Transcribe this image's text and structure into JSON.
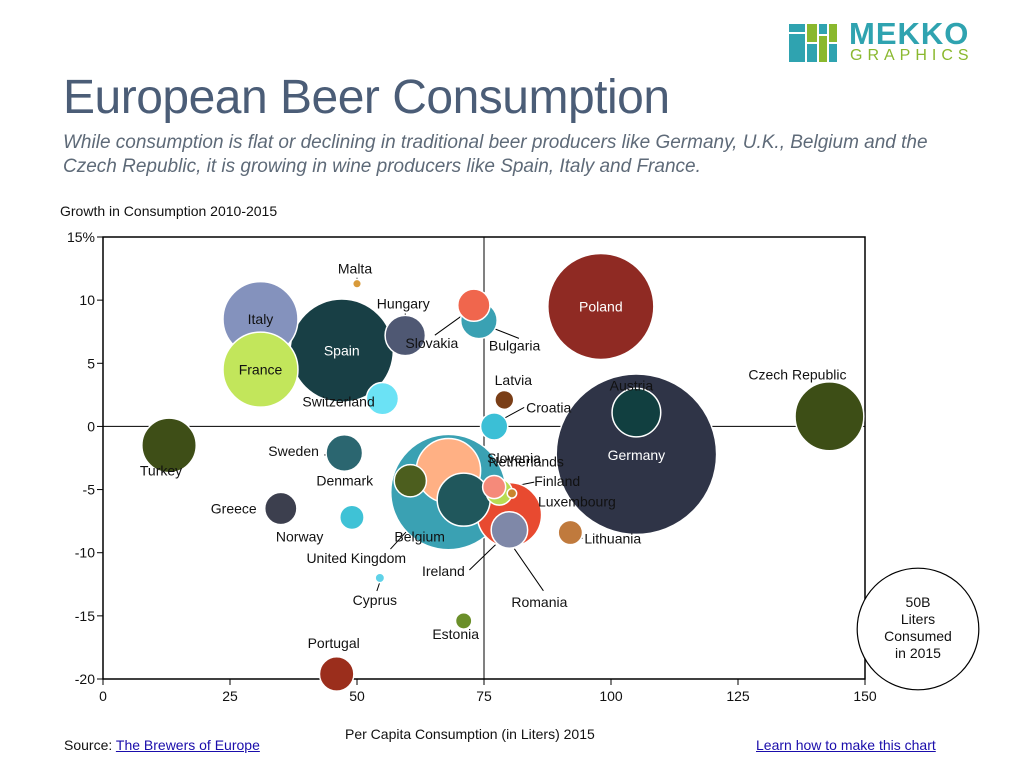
{
  "brand": {
    "name": "MEKKO",
    "sub": "GRAPHICS",
    "colors": {
      "teal": "#2fa3b0",
      "green": "#8ab82e"
    }
  },
  "header": {
    "title": "European Beer Consumption",
    "subtitle": "While consumption is flat or declining in traditional beer producers like Germany, U.K., Belgium and the Czech Republic, it is growing in wine producers like Spain, Italy and France."
  },
  "footer": {
    "source_prefix": "Source: ",
    "source_link": "The Brewers of Europe",
    "learn_link": "Learn how to make this chart"
  },
  "chart_data": {
    "type": "scatter",
    "subtype": "bubble",
    "xlabel": "Per Capita Consumption (in Liters) 2015",
    "ylabel": "Growth in Consumption 2010-2015",
    "xlim": [
      0,
      150
    ],
    "ylim": [
      -20,
      15
    ],
    "x_ticks": [
      0,
      25,
      50,
      75,
      100,
      125,
      150
    ],
    "y_ticks": [
      15,
      10,
      5,
      0,
      -5,
      -10,
      -15,
      -20
    ],
    "y_tick_labels": [
      "15%",
      "10",
      "5",
      "0",
      "-5",
      "-10",
      "-15",
      "-20"
    ],
    "reference_lines": {
      "x": 75,
      "y": 0
    },
    "grid": false,
    "size_legend": {
      "text": [
        "50B",
        "Liters",
        "Consumed",
        "in 2015"
      ],
      "value": 50
    },
    "points": [
      {
        "name": "Germany",
        "x": 105,
        "y": -2.2,
        "size": 87,
        "color": "#2f3447",
        "label_inside": true
      },
      {
        "name": "United Kingdom",
        "x": 68,
        "y": -5.2,
        "size": 45,
        "color": "#3aa1b3"
      },
      {
        "name": "Poland",
        "x": 98,
        "y": 9.5,
        "size": 38,
        "color": "#8f2a23",
        "label_inside": true
      },
      {
        "name": "Spain",
        "x": 47,
        "y": 6,
        "size": 36,
        "color": "#183f45",
        "label_inside": true
      },
      {
        "name": "Italy",
        "x": 31,
        "y": 8.5,
        "size": 19,
        "color": "#8492bd",
        "label_inside": true
      },
      {
        "name": "France",
        "x": 31,
        "y": 4.5,
        "size": 19,
        "color": "#c2e65b",
        "label_inside": true
      },
      {
        "name": "Czech Republic",
        "x": 143,
        "y": 0.8,
        "size": 16,
        "color": "#3d4e16"
      },
      {
        "name": "Netherlands",
        "x": 68,
        "y": -3.5,
        "size": 14,
        "color": "#ffb084"
      },
      {
        "name": "Romania",
        "x": 80,
        "y": -7,
        "size": 14,
        "color": "#e84a30"
      },
      {
        "name": "Turkey",
        "x": 13,
        "y": -1.5,
        "size": 10,
        "color": "#3e4e17"
      },
      {
        "name": "Belgium",
        "x": 71,
        "y": -5.8,
        "size": 9.5,
        "color": "#20575c"
      },
      {
        "name": "Austria",
        "x": 105,
        "y": 1.1,
        "size": 8,
        "color": "#113f40"
      },
      {
        "name": "Hungary",
        "x": 59.5,
        "y": 7.2,
        "size": 5.5,
        "color": "#4f5873"
      },
      {
        "name": "Bulgaria",
        "x": 74,
        "y": 8.4,
        "size": 4.5,
        "color": "#3aa1b3"
      },
      {
        "name": "Sweden",
        "x": 47.5,
        "y": -2.1,
        "size": 4.5,
        "color": "#2b6670"
      },
      {
        "name": "Ireland",
        "x": 80,
        "y": -8.2,
        "size": 4.5,
        "color": "#7f88a8"
      },
      {
        "name": "Slovakia",
        "x": 73,
        "y": 9.6,
        "size": 3.5,
        "color": "#f0664d"
      },
      {
        "name": "Switzerland",
        "x": 55,
        "y": 2.2,
        "size": 3.5,
        "color": "#6be2f5"
      },
      {
        "name": "Denmark",
        "x": 60.5,
        "y": -4.3,
        "size": 3.5,
        "color": "#4c5e1e"
      },
      {
        "name": "Greece",
        "x": 35,
        "y": -6.5,
        "size": 3.5,
        "color": "#3c3f4e"
      },
      {
        "name": "Portugal",
        "x": 46,
        "y": -19.6,
        "size": 4,
        "color": "#9b2e1c"
      },
      {
        "name": "Croatia",
        "x": 77,
        "y": 0,
        "size": 2.5,
        "color": "#3bbfd6"
      },
      {
        "name": "Slovenia",
        "x": 77,
        "y": -4.8,
        "size": 1.8,
        "color": "#f58a7a"
      },
      {
        "name": "Finland",
        "x": 78,
        "y": -5.2,
        "size": 2.3,
        "color": "#b8db52"
      },
      {
        "name": "Lithuania",
        "x": 92,
        "y": -8.4,
        "size": 2,
        "color": "#c07a3d"
      },
      {
        "name": "Norway",
        "x": 49,
        "y": -7.2,
        "size": 2,
        "color": "#3fc2d6"
      },
      {
        "name": "Latvia",
        "x": 79,
        "y": 2.1,
        "size": 1.2,
        "color": "#7a3e17"
      },
      {
        "name": "Estonia",
        "x": 71,
        "y": -15.4,
        "size": 0.9,
        "color": "#6b8f2a"
      },
      {
        "name": "Luxembourg",
        "x": 80.5,
        "y": -5.3,
        "size": 0.3,
        "color": "#c9852e"
      },
      {
        "name": "Cyprus",
        "x": 54.5,
        "y": -12,
        "size": 0.3,
        "color": "#5fd2e8"
      },
      {
        "name": "Malta",
        "x": 50,
        "y": 11.3,
        "size": 0.25,
        "color": "#d89a3a"
      }
    ]
  }
}
